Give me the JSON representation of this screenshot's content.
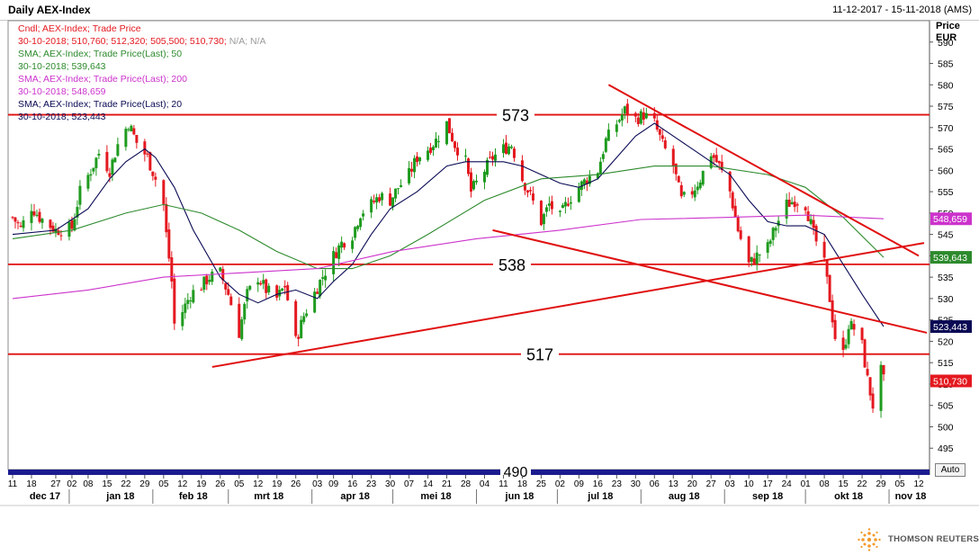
{
  "header": {
    "title": "Daily AEX-Index",
    "date_range": "11-12-2017 - 15-11-2018 (AMS)"
  },
  "legend": {
    "candle_label": "Cndl; AEX-Index; Trade Price",
    "candle_values": "30-10-2018; 510,760; 512,320; 505,500; 510,730;",
    "candle_na": "N/A; N/A",
    "sma50_label": "SMA; AEX-Index; Trade Price(Last); 50",
    "sma50_value": "30-10-2018; 539,643",
    "sma200_label": "SMA; AEX-Index; Trade Price(Last); 200",
    "sma200_value": "30-10-2018; 548,659",
    "sma20_label": "SMA; AEX-Index; Trade Price(Last); 20",
    "sma20_value": "30-10-2018; 523,443"
  },
  "y_axis": {
    "header_line1": "Price",
    "header_line2": "EUR",
    "auto_label": "Auto"
  },
  "brand": {
    "name": "THOMSON REUTERS"
  },
  "colors": {
    "up": "#1e9b1e",
    "down": "#e4181f",
    "sma20": "#0a0a55",
    "sma50": "#2d8a2d",
    "sma200": "#cc33cc",
    "lines": "#e01010",
    "axis_bar": "#1b1b8f"
  },
  "chart_data": {
    "type": "candlestick",
    "title": "Daily AEX-Index",
    "ylabel": "Price EUR",
    "ylim": [
      490,
      595
    ],
    "y_ticks": [
      495,
      500,
      505,
      510,
      515,
      520,
      525,
      530,
      535,
      540,
      545,
      550,
      555,
      560,
      565,
      570,
      575,
      580,
      585,
      590
    ],
    "x_range": [
      "2017-12-11",
      "2018-11-15"
    ],
    "x_ticks": [
      {
        "d": "2017-12-11",
        "t": "11"
      },
      {
        "d": "2017-12-18",
        "t": "18"
      },
      {
        "d": "2017-12-27",
        "t": "27"
      },
      {
        "d": "2018-01-02",
        "t": "02"
      },
      {
        "d": "2018-01-08",
        "t": "08"
      },
      {
        "d": "2018-01-15",
        "t": "15"
      },
      {
        "d": "2018-01-22",
        "t": "22"
      },
      {
        "d": "2018-01-29",
        "t": "29"
      },
      {
        "d": "2018-02-05",
        "t": "05"
      },
      {
        "d": "2018-02-12",
        "t": "12"
      },
      {
        "d": "2018-02-19",
        "t": "19"
      },
      {
        "d": "2018-02-26",
        "t": "26"
      },
      {
        "d": "2018-03-05",
        "t": "05"
      },
      {
        "d": "2018-03-12",
        "t": "12"
      },
      {
        "d": "2018-03-19",
        "t": "19"
      },
      {
        "d": "2018-03-26",
        "t": "26"
      },
      {
        "d": "2018-04-03",
        "t": "03"
      },
      {
        "d": "2018-04-09",
        "t": "09"
      },
      {
        "d": "2018-04-16",
        "t": "16"
      },
      {
        "d": "2018-04-23",
        "t": "23"
      },
      {
        "d": "2018-04-30",
        "t": "30"
      },
      {
        "d": "2018-05-07",
        "t": "07"
      },
      {
        "d": "2018-05-14",
        "t": "14"
      },
      {
        "d": "2018-05-21",
        "t": "21"
      },
      {
        "d": "2018-05-28",
        "t": "28"
      },
      {
        "d": "2018-06-04",
        "t": "04"
      },
      {
        "d": "2018-06-11",
        "t": "11"
      },
      {
        "d": "2018-06-18",
        "t": "18"
      },
      {
        "d": "2018-06-25",
        "t": "25"
      },
      {
        "d": "2018-07-02",
        "t": "02"
      },
      {
        "d": "2018-07-09",
        "t": "09"
      },
      {
        "d": "2018-07-16",
        "t": "16"
      },
      {
        "d": "2018-07-23",
        "t": "23"
      },
      {
        "d": "2018-07-30",
        "t": "30"
      },
      {
        "d": "2018-08-06",
        "t": "06"
      },
      {
        "d": "2018-08-13",
        "t": "13"
      },
      {
        "d": "2018-08-20",
        "t": "20"
      },
      {
        "d": "2018-08-27",
        "t": "27"
      },
      {
        "d": "2018-09-03",
        "t": "03"
      },
      {
        "d": "2018-09-10",
        "t": "10"
      },
      {
        "d": "2018-09-17",
        "t": "17"
      },
      {
        "d": "2018-09-24",
        "t": "24"
      },
      {
        "d": "2018-10-01",
        "t": "01"
      },
      {
        "d": "2018-10-08",
        "t": "08"
      },
      {
        "d": "2018-10-15",
        "t": "15"
      },
      {
        "d": "2018-10-22",
        "t": "22"
      },
      {
        "d": "2018-10-29",
        "t": "29"
      },
      {
        "d": "2018-11-05",
        "t": "05"
      },
      {
        "d": "2018-11-12",
        "t": "12"
      }
    ],
    "months": [
      {
        "label": "dec 17",
        "d": "2017-12-23"
      },
      {
        "label": "jan 18",
        "d": "2018-01-20"
      },
      {
        "label": "feb 18",
        "d": "2018-02-16"
      },
      {
        "label": "mrt 18",
        "d": "2018-03-16"
      },
      {
        "label": "apr 18",
        "d": "2018-04-17"
      },
      {
        "label": "mei 18",
        "d": "2018-05-17"
      },
      {
        "label": "jun 18",
        "d": "2018-06-17"
      },
      {
        "label": "jul 18",
        "d": "2018-07-17"
      },
      {
        "label": "aug 18",
        "d": "2018-08-17"
      },
      {
        "label": "sep 18",
        "d": "2018-09-17"
      },
      {
        "label": "okt 18",
        "d": "2018-10-17"
      },
      {
        "label": "nov 18",
        "d": "2018-11-09"
      }
    ],
    "month_starts": [
      "2018-01-01",
      "2018-02-01",
      "2018-03-01",
      "2018-04-01",
      "2018-05-01",
      "2018-06-01",
      "2018-07-01",
      "2018-08-01",
      "2018-09-01",
      "2018-10-01",
      "2018-11-01"
    ],
    "closes": [
      {
        "d": "2017-12-11",
        "c": 549.0
      },
      {
        "d": "2017-12-14",
        "c": 546.5
      },
      {
        "d": "2017-12-18",
        "c": 551.5
      },
      {
        "d": "2017-12-21",
        "c": 549.0
      },
      {
        "d": "2017-12-27",
        "c": 546.0
      },
      {
        "d": "2018-01-02",
        "c": 546.5
      },
      {
        "d": "2018-01-05",
        "c": 555.0
      },
      {
        "d": "2018-01-09",
        "c": 560.0
      },
      {
        "d": "2018-01-12",
        "c": 564.0
      },
      {
        "d": "2018-01-16",
        "c": 560.0
      },
      {
        "d": "2018-01-19",
        "c": 566.0
      },
      {
        "d": "2018-01-23",
        "c": 571.0
      },
      {
        "d": "2018-01-26",
        "c": 566.5
      },
      {
        "d": "2018-01-30",
        "c": 563.0
      },
      {
        "d": "2018-02-02",
        "c": 558.0
      },
      {
        "d": "2018-02-05",
        "c": 552.0
      },
      {
        "d": "2018-02-06",
        "c": 545.0
      },
      {
        "d": "2018-02-08",
        "c": 534.0
      },
      {
        "d": "2018-02-09",
        "c": 524.0
      },
      {
        "d": "2018-02-12",
        "c": 527.0
      },
      {
        "d": "2018-02-15",
        "c": 531.0
      },
      {
        "d": "2018-02-19",
        "c": 533.0
      },
      {
        "d": "2018-02-22",
        "c": 535.0
      },
      {
        "d": "2018-02-26",
        "c": 536.0
      },
      {
        "d": "2018-03-01",
        "c": 531.0
      },
      {
        "d": "2018-03-05",
        "c": 522.0
      },
      {
        "d": "2018-03-08",
        "c": 531.0
      },
      {
        "d": "2018-03-12",
        "c": 535.0
      },
      {
        "d": "2018-03-15",
        "c": 532.0
      },
      {
        "d": "2018-03-19",
        "c": 530.0
      },
      {
        "d": "2018-03-22",
        "c": 533.0
      },
      {
        "d": "2018-03-26",
        "c": 520.0
      },
      {
        "d": "2018-03-29",
        "c": 526.0
      },
      {
        "d": "2018-04-04",
        "c": 534.0
      },
      {
        "d": "2018-04-09",
        "c": 540.0
      },
      {
        "d": "2018-04-12",
        "c": 543.0
      },
      {
        "d": "2018-04-16",
        "c": 545.0
      },
      {
        "d": "2018-04-19",
        "c": 550.0
      },
      {
        "d": "2018-04-23",
        "c": 552.0
      },
      {
        "d": "2018-04-26",
        "c": 554.0
      },
      {
        "d": "2018-04-30",
        "c": 553.0
      },
      {
        "d": "2018-05-03",
        "c": 556.0
      },
      {
        "d": "2018-05-07",
        "c": 559.0
      },
      {
        "d": "2018-05-10",
        "c": 563.0
      },
      {
        "d": "2018-05-14",
        "c": 565.0
      },
      {
        "d": "2018-05-17",
        "c": 567.0
      },
      {
        "d": "2018-05-21",
        "c": 571.0
      },
      {
        "d": "2018-05-24",
        "c": 566.0
      },
      {
        "d": "2018-05-28",
        "c": 562.0
      },
      {
        "d": "2018-05-30",
        "c": 555.0
      },
      {
        "d": "2018-06-04",
        "c": 560.0
      },
      {
        "d": "2018-06-07",
        "c": 563.0
      },
      {
        "d": "2018-06-11",
        "c": 565.0
      },
      {
        "d": "2018-06-14",
        "c": 566.0
      },
      {
        "d": "2018-06-18",
        "c": 558.0
      },
      {
        "d": "2018-06-21",
        "c": 554.0
      },
      {
        "d": "2018-06-25",
        "c": 548.0
      },
      {
        "d": "2018-06-28",
        "c": 552.0
      },
      {
        "d": "2018-07-02",
        "c": 549.0
      },
      {
        "d": "2018-07-05",
        "c": 553.0
      },
      {
        "d": "2018-07-09",
        "c": 556.0
      },
      {
        "d": "2018-07-12",
        "c": 558.0
      },
      {
        "d": "2018-07-16",
        "c": 560.0
      },
      {
        "d": "2018-07-19",
        "c": 567.0
      },
      {
        "d": "2018-07-23",
        "c": 571.0
      },
      {
        "d": "2018-07-26",
        "c": 574.0
      },
      {
        "d": "2018-07-30",
        "c": 572.0
      },
      {
        "d": "2018-08-02",
        "c": 573.0
      },
      {
        "d": "2018-08-06",
        "c": 571.0
      },
      {
        "d": "2018-08-09",
        "c": 566.0
      },
      {
        "d": "2018-08-13",
        "c": 561.0
      },
      {
        "d": "2018-08-16",
        "c": 553.0
      },
      {
        "d": "2018-08-20",
        "c": 555.0
      },
      {
        "d": "2018-08-23",
        "c": 558.0
      },
      {
        "d": "2018-08-27",
        "c": 564.0
      },
      {
        "d": "2018-08-30",
        "c": 561.0
      },
      {
        "d": "2018-09-03",
        "c": 555.0
      },
      {
        "d": "2018-09-06",
        "c": 546.0
      },
      {
        "d": "2018-09-10",
        "c": 538.0
      },
      {
        "d": "2018-09-13",
        "c": 540.0
      },
      {
        "d": "2018-09-17",
        "c": 542.0
      },
      {
        "d": "2018-09-20",
        "c": 547.0
      },
      {
        "d": "2018-09-24",
        "c": 552.0
      },
      {
        "d": "2018-09-27",
        "c": 553.0
      },
      {
        "d": "2018-10-01",
        "c": 552.0
      },
      {
        "d": "2018-10-04",
        "c": 545.0
      },
      {
        "d": "2018-10-08",
        "c": 538.0
      },
      {
        "d": "2018-10-10",
        "c": 530.0
      },
      {
        "d": "2018-10-12",
        "c": 521.0
      },
      {
        "d": "2018-10-15",
        "c": 517.0
      },
      {
        "d": "2018-10-17",
        "c": 524.0
      },
      {
        "d": "2018-10-19",
        "c": 523.0
      },
      {
        "d": "2018-10-22",
        "c": 519.0
      },
      {
        "d": "2018-10-24",
        "c": 511.0
      },
      {
        "d": "2018-10-26",
        "c": 505.0
      },
      {
        "d": "2018-10-29",
        "c": 513.0
      },
      {
        "d": "2018-10-30",
        "c": 510.73
      }
    ],
    "series": [
      {
        "name": "SMA; AEX-Index; Trade Price(Last); 20",
        "color": "#0a0a55",
        "points": [
          [
            "2017-12-11",
            545
          ],
          [
            "2017-12-27",
            546
          ],
          [
            "2018-01-08",
            551
          ],
          [
            "2018-01-16",
            558
          ],
          [
            "2018-01-22",
            562
          ],
          [
            "2018-01-29",
            565
          ],
          [
            "2018-02-02",
            563
          ],
          [
            "2018-02-09",
            556
          ],
          [
            "2018-02-16",
            546
          ],
          [
            "2018-02-26",
            535
          ],
          [
            "2018-03-05",
            531
          ],
          [
            "2018-03-12",
            529
          ],
          [
            "2018-03-19",
            531
          ],
          [
            "2018-03-26",
            532
          ],
          [
            "2018-04-03",
            530
          ],
          [
            "2018-04-09",
            534
          ],
          [
            "2018-04-16",
            538
          ],
          [
            "2018-04-23",
            545
          ],
          [
            "2018-04-30",
            551
          ],
          [
            "2018-05-10",
            555
          ],
          [
            "2018-05-21",
            561
          ],
          [
            "2018-05-28",
            562
          ],
          [
            "2018-06-04",
            562
          ],
          [
            "2018-06-11",
            562
          ],
          [
            "2018-06-18",
            561
          ],
          [
            "2018-06-25",
            559
          ],
          [
            "2018-07-02",
            557
          ],
          [
            "2018-07-09",
            556
          ],
          [
            "2018-07-16",
            558
          ],
          [
            "2018-07-23",
            563
          ],
          [
            "2018-07-30",
            568
          ],
          [
            "2018-08-06",
            571
          ],
          [
            "2018-08-13",
            568
          ],
          [
            "2018-08-20",
            565
          ],
          [
            "2018-08-27",
            562
          ],
          [
            "2018-09-03",
            559
          ],
          [
            "2018-09-10",
            553
          ],
          [
            "2018-09-17",
            548
          ],
          [
            "2018-09-24",
            547
          ],
          [
            "2018-10-01",
            547
          ],
          [
            "2018-10-08",
            545
          ],
          [
            "2018-10-15",
            538
          ],
          [
            "2018-10-22",
            531
          ],
          [
            "2018-10-30",
            523.443
          ]
        ]
      },
      {
        "name": "SMA; AEX-Index; Trade Price(Last); 50",
        "color": "#2d8a2d",
        "points": [
          [
            "2017-12-11",
            544
          ],
          [
            "2018-01-02",
            546
          ],
          [
            "2018-01-22",
            550
          ],
          [
            "2018-02-05",
            552
          ],
          [
            "2018-02-19",
            550
          ],
          [
            "2018-03-05",
            546
          ],
          [
            "2018-03-19",
            541
          ],
          [
            "2018-04-03",
            537
          ],
          [
            "2018-04-16",
            537
          ],
          [
            "2018-04-30",
            540
          ],
          [
            "2018-05-14",
            545
          ],
          [
            "2018-06-04",
            553
          ],
          [
            "2018-06-25",
            558
          ],
          [
            "2018-07-16",
            559
          ],
          [
            "2018-08-06",
            561
          ],
          [
            "2018-08-27",
            561
          ],
          [
            "2018-09-17",
            559
          ],
          [
            "2018-10-01",
            556
          ],
          [
            "2018-10-15",
            549
          ],
          [
            "2018-10-30",
            539.643
          ]
        ]
      },
      {
        "name": "SMA; AEX-Index; Trade Price(Last); 200",
        "color": "#cc33cc",
        "points": [
          [
            "2017-12-11",
            530
          ],
          [
            "2018-01-08",
            532
          ],
          [
            "2018-02-05",
            535
          ],
          [
            "2018-03-05",
            536
          ],
          [
            "2018-04-03",
            537
          ],
          [
            "2018-05-01",
            541
          ],
          [
            "2018-06-01",
            544
          ],
          [
            "2018-07-02",
            546
          ],
          [
            "2018-08-01",
            548.5
          ],
          [
            "2018-09-03",
            549
          ],
          [
            "2018-10-01",
            549.5
          ],
          [
            "2018-10-30",
            548.659
          ]
        ]
      }
    ],
    "horizontal_levels": [
      {
        "value": 573,
        "label": "573"
      },
      {
        "value": 538,
        "label": "538"
      },
      {
        "value": 517,
        "label": "517"
      }
    ],
    "trend_lines": [
      {
        "from": [
          "2018-02-23",
          514
        ],
        "to": [
          "2018-11-14",
          543
        ]
      },
      {
        "from": [
          "2018-06-07",
          546
        ],
        "to": [
          "2018-11-15",
          522
        ]
      },
      {
        "from": [
          "2018-07-20",
          580
        ],
        "to": [
          "2018-11-12",
          540
        ]
      }
    ],
    "last_value_tags": [
      {
        "value": 548.659,
        "label": "548,659",
        "color": "#cc33cc"
      },
      {
        "value": 539.643,
        "label": "539,643",
        "color": "#2d8a2d"
      },
      {
        "value": 523.443,
        "label": "523,443",
        "color": "#0a0a55"
      },
      {
        "value": 510.73,
        "label": "510,730",
        "color": "#e4181f"
      }
    ],
    "bottom_label": "490"
  }
}
